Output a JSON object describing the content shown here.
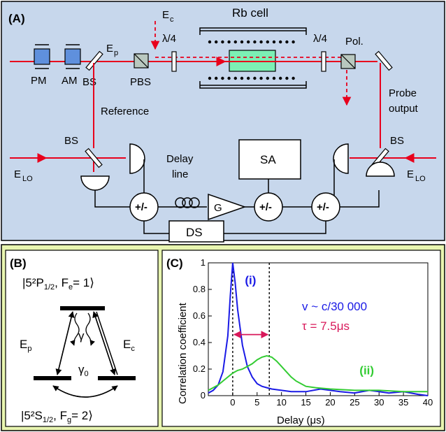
{
  "colors": {
    "panel_a_bg": "#c7d7ec",
    "panel_bc_bg": "#e8f5b0",
    "laser": "#e8001c",
    "blue_curve": "#1a1ae6",
    "green_curve": "#33cc33",
    "cell": "#7cf0b4",
    "modulator": "#5f90dd",
    "arrow_pink": "#d8185a"
  },
  "panel_a": {
    "tag": "(A)",
    "rb_cell": "Rb cell",
    "ec": "E",
    "ec_sub": "c",
    "ep": "E",
    "ep_sub": "p",
    "qwp1": "λ/4",
    "qwp2": "λ/4",
    "pol": "Pol.",
    "pm": "PM",
    "am": "AM",
    "bs_top": "BS",
    "pbs": "PBS",
    "reference": "Reference",
    "probe_output_1": "Probe",
    "probe_output_2": "output",
    "bs_left": "BS",
    "bs_right": "BS",
    "elo_left": "E",
    "elo_left_sub": "LO",
    "elo_right": "E",
    "elo_right_sub": "LO",
    "delay_1": "Delay",
    "delay_2": "line",
    "sa": "SA",
    "g": "G",
    "pm_sum_1": "+/-",
    "pm_sum_2": "+/-",
    "pm_sum_3": "+/-",
    "ds": "DS"
  },
  "panel_b": {
    "tag": "(B)",
    "upper_level": "|5²P",
    "upper_level_sub": "1/2",
    "upper_level_rest": ", F",
    "upper_level_sub2": "e",
    "upper_level_end": "= 1⟩",
    "lower_level": "|5²S",
    "lower_level_sub": "1/2",
    "lower_level_rest": ", F",
    "lower_level_sub2": "g",
    "lower_level_end": "= 2⟩",
    "ep": "E",
    "ep_sub": "p",
    "ec": "E",
    "ec_sub": "c",
    "gamma": "γ",
    "gamma0": "γ",
    "gamma0_sub": "0"
  },
  "chart_data": {
    "type": "line",
    "tag": "(C)",
    "xlabel": "Delay (μs)",
    "ylabel": "Correlation coefficient",
    "xlim": [
      -5,
      40
    ],
    "ylim": [
      0,
      1
    ],
    "xticks": [
      0,
      5,
      10,
      15,
      20,
      25,
      30,
      35,
      40
    ],
    "yticks": [
      0,
      0.2,
      0.4,
      0.6,
      0.8,
      1
    ],
    "ytick_labels": [
      "0",
      "0.2",
      "0.4",
      "0.6",
      "0.8",
      "1"
    ],
    "series": [
      {
        "name": "(i)",
        "color": "#1a1ae6",
        "x": [
          -5,
          -4,
          -3,
          -2,
          -1,
          -0.5,
          0,
          0.5,
          1,
          2,
          3,
          4,
          5,
          6,
          7,
          8,
          10,
          12,
          15,
          18,
          20,
          22,
          25,
          28,
          30,
          32,
          35,
          38,
          40
        ],
        "y": [
          0.02,
          0.04,
          0.08,
          0.18,
          0.45,
          0.75,
          1.0,
          0.85,
          0.65,
          0.38,
          0.22,
          0.14,
          0.09,
          0.07,
          0.06,
          0.05,
          0.04,
          0.03,
          0.03,
          0.05,
          0.04,
          0.03,
          0.02,
          0.04,
          0.03,
          0.02,
          0.03,
          0.01,
          0.0
        ]
      },
      {
        "name": "(ii)",
        "color": "#33cc33",
        "x": [
          -5,
          -4,
          -3,
          -2,
          -1,
          0,
          1,
          2,
          3,
          4,
          5,
          6,
          7,
          8,
          9,
          10,
          11,
          12,
          13,
          14,
          15,
          17,
          20,
          25,
          30,
          35,
          40
        ],
        "y": [
          0.04,
          0.06,
          0.08,
          0.11,
          0.14,
          0.17,
          0.19,
          0.2,
          0.22,
          0.24,
          0.27,
          0.29,
          0.3,
          0.29,
          0.26,
          0.22,
          0.18,
          0.14,
          0.11,
          0.09,
          0.07,
          0.06,
          0.05,
          0.04,
          0.04,
          0.03,
          0.03
        ]
      }
    ],
    "annotations": {
      "velocity": "v ~ c/30 000",
      "tau": "τ = 7.5μs"
    },
    "vlines": [
      0,
      7.5
    ]
  }
}
